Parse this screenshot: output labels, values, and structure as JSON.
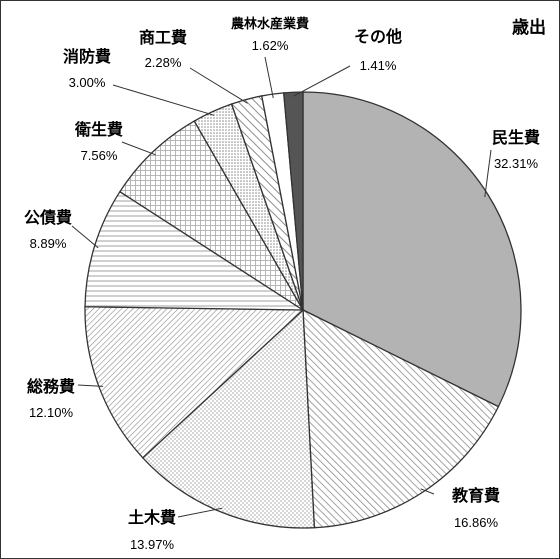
{
  "chart_data": {
    "type": "pie",
    "title": "歳出",
    "slices": [
      {
        "label": "民生費",
        "pct_text": "32.31%",
        "value": 32.31,
        "pattern": "solid-gray"
      },
      {
        "label": "教育費",
        "pct_text": "16.86%",
        "value": 16.86,
        "pattern": "diag-dense"
      },
      {
        "label": "土木費",
        "pct_text": "13.97%",
        "value": 13.97,
        "pattern": "dots"
      },
      {
        "label": "総務費",
        "pct_text": "12.10%",
        "value": 12.1,
        "pattern": "diag-fine"
      },
      {
        "label": "公債費",
        "pct_text": "8.89%",
        "value": 8.89,
        "pattern": "horizontal"
      },
      {
        "label": "衛生費",
        "pct_text": "7.56%",
        "value": 7.56,
        "pattern": "grid"
      },
      {
        "label": "消防費",
        "pct_text": "3.00%",
        "value": 3.0,
        "pattern": "dots-dense"
      },
      {
        "label": "商工費",
        "pct_text": "2.28%",
        "value": 2.28,
        "pattern": "diag-wide"
      },
      {
        "label": "農林水産業費",
        "pct_text": "1.62%",
        "value": 1.62,
        "pattern": "white"
      },
      {
        "label": "その他",
        "pct_text": "1.41%",
        "value": 1.41,
        "pattern": "dark"
      }
    ],
    "start": "12 o'clock",
    "direction": "clockwise",
    "colors": {
      "solid-gray": "#b3b3b3",
      "dark": "#555555",
      "outline": "#333333"
    }
  }
}
